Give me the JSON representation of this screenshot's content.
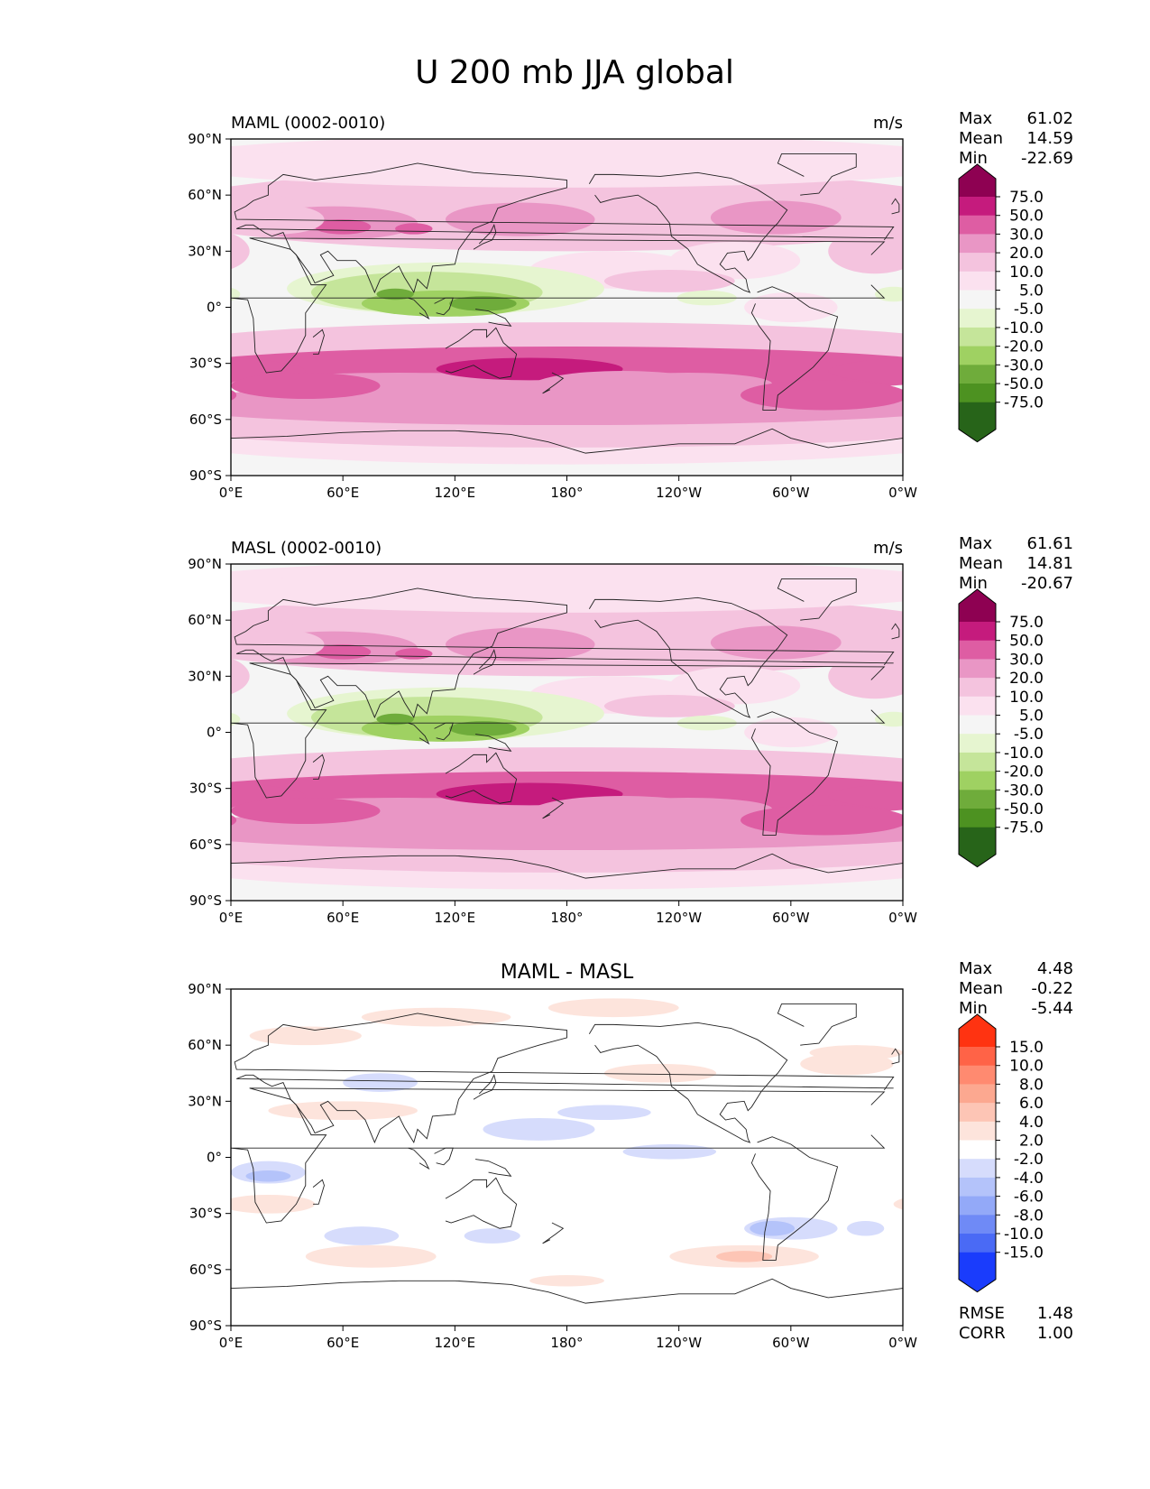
{
  "figure": {
    "title": "U 200 mb JJA global"
  },
  "chart_data": [
    {
      "type": "heatmap",
      "title": "MAML (0002-0010)",
      "units": "m/s",
      "stats": {
        "Max": "61.02",
        "Mean": "14.59",
        "Min": "-22.69"
      },
      "x_ticks": [
        "0°E",
        "60°E",
        "120°E",
        "180°",
        "120°W",
        "60°W",
        "0°W"
      ],
      "y_ticks": [
        "90°N",
        "60°N",
        "30°N",
        "0°",
        "30°S",
        "60°S",
        "90°S"
      ],
      "xlim": [
        0,
        360
      ],
      "ylim": [
        -90,
        90
      ],
      "colorbar": {
        "labels": [
          "75.0",
          "50.0",
          "30.0",
          "20.0",
          "10.0",
          "5.0",
          "-5.0",
          "-10.0",
          "-20.0",
          "-30.0",
          "-50.0",
          "-75.0"
        ],
        "colors": [
          "#8e0152",
          "#c51b7d",
          "#de5da3",
          "#e996c5",
          "#f4c3de",
          "#fbe1ef",
          "#f5f5f5",
          "#e6f5d0",
          "#c5e59a",
          "#9fd162",
          "#6fac3b",
          "#4d9221",
          "#276419"
        ]
      }
    },
    {
      "type": "heatmap",
      "title": "MASL (0002-0010)",
      "units": "m/s",
      "stats": {
        "Max": "61.61",
        "Mean": "14.81",
        "Min": "-20.67"
      },
      "x_ticks": [
        "0°E",
        "60°E",
        "120°E",
        "180°",
        "120°W",
        "60°W",
        "0°W"
      ],
      "y_ticks": [
        "90°N",
        "60°N",
        "30°N",
        "0°",
        "30°S",
        "60°S",
        "90°S"
      ],
      "xlim": [
        0,
        360
      ],
      "ylim": [
        -90,
        90
      ],
      "colorbar": {
        "labels": [
          "75.0",
          "50.0",
          "30.0",
          "20.0",
          "10.0",
          "5.0",
          "-5.0",
          "-10.0",
          "-20.0",
          "-30.0",
          "-50.0",
          "-75.0"
        ],
        "colors": [
          "#8e0152",
          "#c51b7d",
          "#de5da3",
          "#e996c5",
          "#f4c3de",
          "#fbe1ef",
          "#f5f5f5",
          "#e6f5d0",
          "#c5e59a",
          "#9fd162",
          "#6fac3b",
          "#4d9221",
          "#276419"
        ]
      }
    },
    {
      "type": "heatmap",
      "title": "MAML - MASL",
      "units": "",
      "stats": {
        "Max": "4.48",
        "Mean": "-0.22",
        "Min": "-5.44"
      },
      "extra_stats": {
        "RMSE": "1.48",
        "CORR": "1.00"
      },
      "x_ticks": [
        "0°E",
        "60°E",
        "120°E",
        "180°",
        "120°W",
        "60°W",
        "0°W"
      ],
      "y_ticks": [
        "90°N",
        "60°N",
        "30°N",
        "0°",
        "30°S",
        "60°S",
        "90°S"
      ],
      "xlim": [
        0,
        360
      ],
      "ylim": [
        -90,
        90
      ],
      "colorbar": {
        "labels": [
          "15.0",
          "10.0",
          "8.0",
          "6.0",
          "4.0",
          "2.0",
          "-2.0",
          "-4.0",
          "-6.0",
          "-8.0",
          "-10.0",
          "-15.0"
        ],
        "colors": [
          "#ff3311",
          "#ff6347",
          "#ff8a70",
          "#fca890",
          "#fdc5b5",
          "#fde4dc",
          "#ffffff",
          "#d6dcfc",
          "#b4c3fa",
          "#93a9f8",
          "#6f8af6",
          "#4a6af5",
          "#1a3cfc"
        ]
      }
    }
  ]
}
